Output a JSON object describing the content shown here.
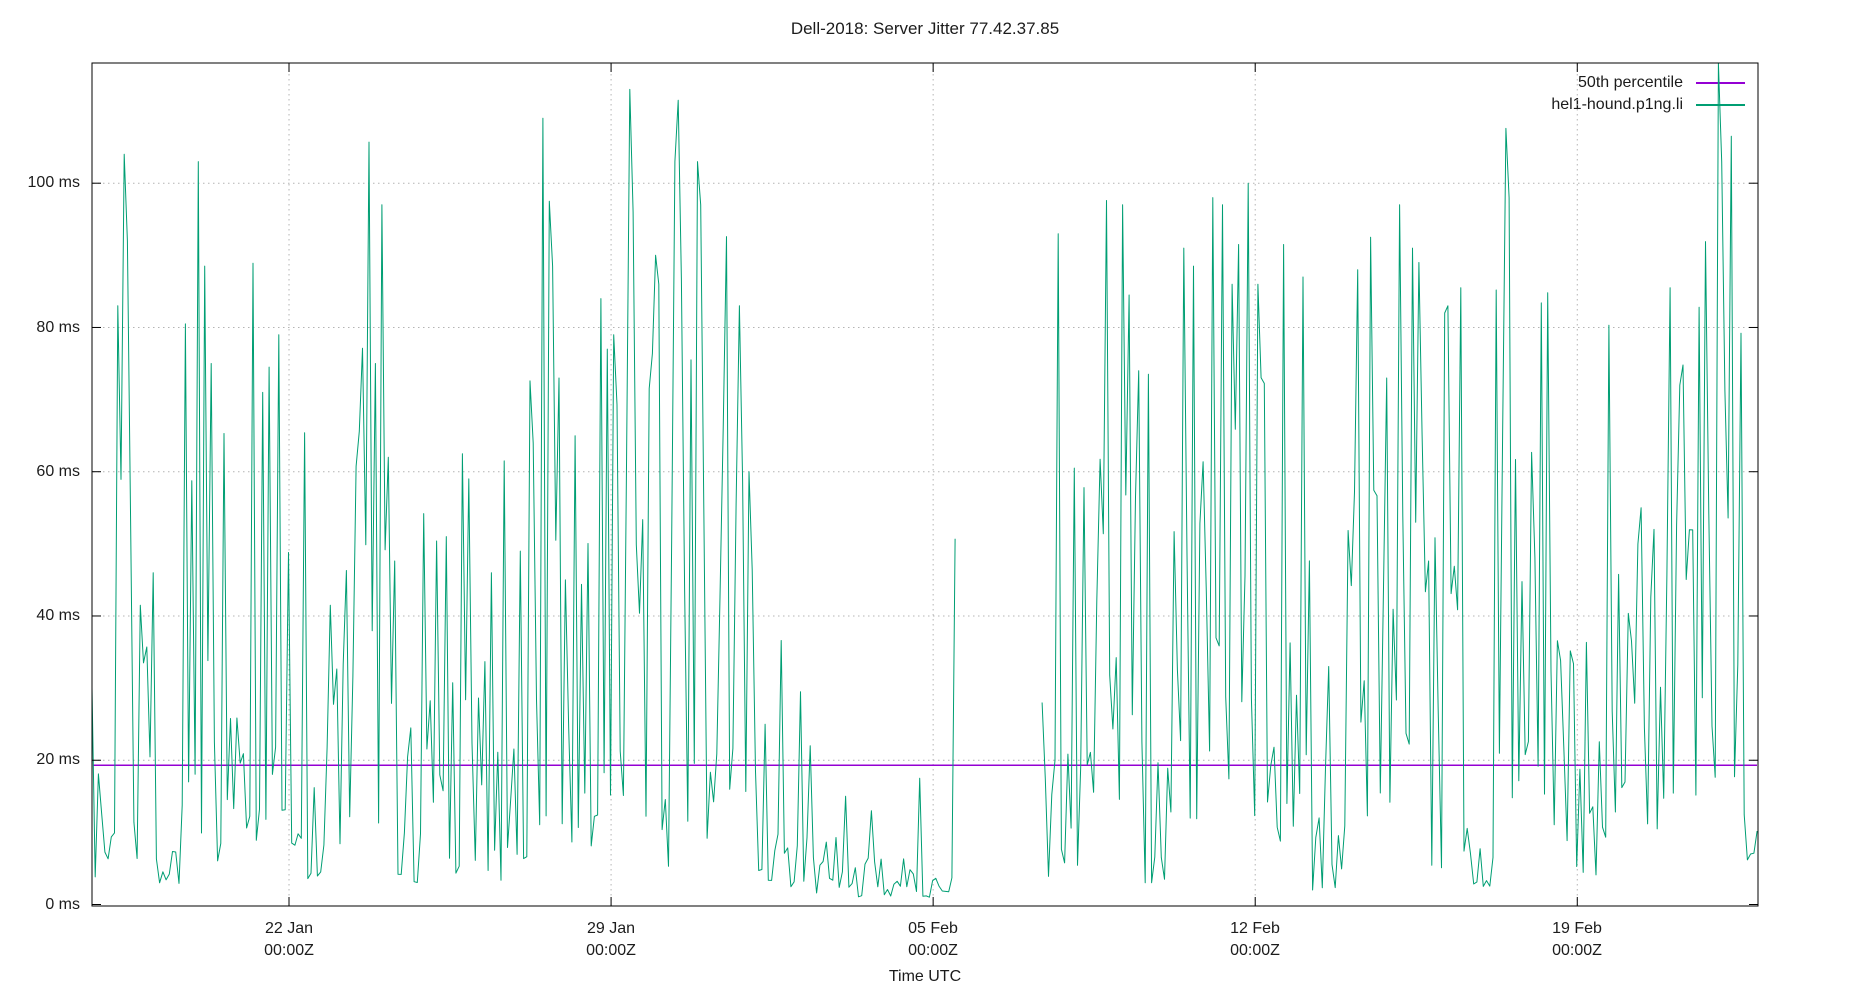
{
  "chart_data": {
    "type": "line",
    "title": "Dell-2018: Server Jitter 77.42.37.85",
    "xlabel": "Time UTC",
    "y_unit": "ms",
    "grid": "dotted",
    "legend_position": "inside-top-right",
    "background": "#ffffff",
    "border_color": "#000000",
    "grid_color": "#b4b4b4",
    "text_color": "#1c1c1c",
    "y_ticks": [
      0,
      20,
      40,
      60,
      80,
      100
    ],
    "y_tick_labels": [
      "0 ms",
      "20 ms",
      "40 ms",
      "60 ms",
      "80 ms",
      "100 ms"
    ],
    "y_max": 116.7,
    "x_span_days": 36.21,
    "x_ticks": [
      {
        "t": 4.282,
        "label_line1": "22 Jan",
        "label_line2": "00:00Z"
      },
      {
        "t": 11.282,
        "label_line1": "29 Jan",
        "label_line2": "00:00Z"
      },
      {
        "t": 18.282,
        "label_line1": "05 Feb",
        "label_line2": "00:00Z"
      },
      {
        "t": 25.282,
        "label_line1": "12 Feb",
        "label_line2": "00:00Z"
      },
      {
        "t": 32.282,
        "label_line1": "19 Feb",
        "label_line2": "00:00Z"
      }
    ],
    "series": [
      {
        "name": "50th percentile",
        "color": "#9400d3",
        "type": "hline",
        "value_ms": 19.3
      },
      {
        "name": "hel1-hound.p1ng.li",
        "color": "#009e73",
        "type": "jitter-line",
        "sample_step_days": 0.07,
        "seed": 1337,
        "gaps": [
          [
            18.8,
            20.62
          ]
        ],
        "envelope_segments": [
          [
            0.0,
            0.55,
            3,
            26,
            2.0
          ],
          [
            0.55,
            0.9,
            30,
            92,
            1.25
          ],
          [
            0.9,
            1.45,
            4,
            40,
            1.7
          ],
          [
            1.45,
            1.95,
            2.5,
            11,
            1.8
          ],
          [
            1.95,
            2.7,
            9,
            82,
            1.3
          ],
          [
            2.7,
            3.3,
            6,
            52,
            1.5
          ],
          [
            3.3,
            3.55,
            3,
            13,
            1.8
          ],
          [
            3.55,
            4.3,
            8,
            70,
            1.35
          ],
          [
            4.3,
            5.1,
            3,
            22,
            2.0
          ],
          [
            5.1,
            5.65,
            7,
            40,
            1.6
          ],
          [
            5.65,
            6.6,
            11,
            80,
            1.3
          ],
          [
            6.6,
            7.15,
            3,
            28,
            1.8
          ],
          [
            7.15,
            7.8,
            5,
            46,
            1.5
          ],
          [
            7.8,
            8.6,
            4,
            50,
            1.7
          ],
          [
            8.6,
            9.5,
            3,
            26,
            1.9
          ],
          [
            9.5,
            10.6,
            8,
            82,
            1.3
          ],
          [
            10.6,
            11.35,
            6,
            62,
            1.45
          ],
          [
            11.35,
            12.45,
            10,
            84,
            1.3
          ],
          [
            12.45,
            12.6,
            5,
            38,
            1.7
          ],
          [
            12.6,
            13.35,
            11,
            82,
            1.3
          ],
          [
            13.35,
            14.45,
            8,
            70,
            1.4
          ],
          [
            14.45,
            16.3,
            1.5,
            10,
            1.5
          ],
          [
            16.3,
            18.8,
            1,
            6.5,
            1.5
          ],
          [
            20.62,
            21.0,
            3,
            28,
            1.6
          ],
          [
            21.0,
            21.9,
            5,
            52,
            1.45
          ],
          [
            21.9,
            22.85,
            8,
            70,
            1.35
          ],
          [
            22.85,
            23.5,
            3,
            20,
            1.7
          ],
          [
            23.5,
            25.5,
            10,
            78,
            1.25
          ],
          [
            25.5,
            26.5,
            4,
            58,
            1.45
          ],
          [
            26.5,
            27.3,
            2,
            22,
            1.7
          ],
          [
            27.3,
            29.0,
            12,
            68,
            1.3
          ],
          [
            29.0,
            29.87,
            5,
            52,
            1.45
          ],
          [
            29.87,
            30.5,
            2.5,
            12,
            1.7
          ],
          [
            30.5,
            31.75,
            14,
            78,
            1.3
          ],
          [
            31.75,
            32.9,
            3,
            38,
            1.6
          ],
          [
            32.9,
            34.2,
            9,
            50,
            1.45
          ],
          [
            34.2,
            35.9,
            12,
            78,
            1.3
          ],
          [
            35.9,
            36.21,
            3,
            18,
            1.5
          ]
        ],
        "spikes": [
          [
            0.02,
            30
          ],
          [
            0.59,
            83
          ],
          [
            0.7,
            104
          ],
          [
            0.76,
            92
          ],
          [
            1.02,
            41.5
          ],
          [
            1.09,
            33.5
          ],
          [
            1.35,
            46
          ],
          [
            2.0,
            80.5
          ],
          [
            2.32,
            103
          ],
          [
            2.46,
            88.5
          ],
          [
            2.61,
            75
          ],
          [
            2.89,
            65.3
          ],
          [
            3.48,
            88.9
          ],
          [
            3.69,
            71
          ],
          [
            3.87,
            74.5
          ],
          [
            4.04,
            79
          ],
          [
            4.63,
            65.4
          ],
          [
            5.17,
            41.5
          ],
          [
            5.5,
            46.3
          ],
          [
            6.04,
            105.7
          ],
          [
            6.17,
            75
          ],
          [
            6.3,
            97
          ],
          [
            6.47,
            62
          ],
          [
            7.24,
            54.2
          ],
          [
            7.5,
            50.4
          ],
          [
            7.71,
            51
          ],
          [
            8.04,
            62.5
          ],
          [
            8.21,
            59
          ],
          [
            8.69,
            46
          ],
          [
            8.97,
            61.5
          ],
          [
            9.3,
            49
          ],
          [
            9.82,
            109
          ],
          [
            9.93,
            97.5
          ],
          [
            10.02,
            88.5
          ],
          [
            10.17,
            73
          ],
          [
            10.5,
            65
          ],
          [
            11.08,
            84
          ],
          [
            11.21,
            77
          ],
          [
            11.32,
            79
          ],
          [
            11.69,
            113
          ],
          [
            11.78,
            96
          ],
          [
            12.23,
            90
          ],
          [
            12.34,
            86
          ],
          [
            12.65,
            103
          ],
          [
            12.71,
            111.5
          ],
          [
            12.78,
            86.6
          ],
          [
            13.0,
            75.5
          ],
          [
            13.15,
            103
          ],
          [
            13.25,
            97
          ],
          [
            13.82,
            92.6
          ],
          [
            14.04,
            86.6
          ],
          [
            14.08,
            83
          ],
          [
            14.3,
            60
          ],
          [
            14.62,
            25
          ],
          [
            14.99,
            36.6
          ],
          [
            15.38,
            29.5
          ],
          [
            15.64,
            22
          ],
          [
            16.36,
            15
          ],
          [
            16.95,
            13
          ],
          [
            17.99,
            17.5
          ],
          [
            18.75,
            50.7
          ],
          [
            21.0,
            93
          ],
          [
            21.36,
            60.5
          ],
          [
            21.58,
            57.8
          ],
          [
            22.06,
            97.6
          ],
          [
            22.38,
            97
          ],
          [
            22.56,
            84.5
          ],
          [
            22.73,
            74
          ],
          [
            22.99,
            73.5
          ],
          [
            23.75,
            91
          ],
          [
            23.97,
            88.5
          ],
          [
            24.34,
            98
          ],
          [
            24.55,
            97
          ],
          [
            24.77,
            86
          ],
          [
            24.95,
            91.5
          ],
          [
            25.1,
            100
          ],
          [
            25.31,
            86
          ],
          [
            25.92,
            91.5
          ],
          [
            26.29,
            87
          ],
          [
            26.9,
            33
          ],
          [
            27.48,
            88
          ],
          [
            27.81,
            92.5
          ],
          [
            28.16,
            73
          ],
          [
            28.42,
            97
          ],
          [
            28.68,
            91
          ],
          [
            28.86,
            89
          ],
          [
            29.4,
            82
          ],
          [
            29.46,
            83
          ],
          [
            29.77,
            85.5
          ],
          [
            30.55,
            85.2
          ],
          [
            30.7,
            107.6
          ],
          [
            30.77,
            98
          ],
          [
            31.47,
            83.4
          ],
          [
            31.62,
            84.8
          ],
          [
            32.99,
            80.3
          ],
          [
            33.64,
            55
          ],
          [
            33.96,
            52
          ],
          [
            34.33,
            85.5
          ],
          [
            34.57,
            74.8
          ],
          [
            34.9,
            82.8
          ],
          [
            35.07,
            91.9
          ],
          [
            35.33,
            116.7
          ],
          [
            35.4,
            103
          ],
          [
            35.61,
            106.5
          ],
          [
            35.83,
            79.2
          ]
        ]
      }
    ]
  }
}
